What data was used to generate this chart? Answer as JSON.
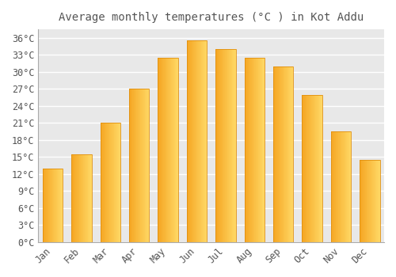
{
  "title": "Average monthly temperatures (°C ) in Kot Addu",
  "months": [
    "Jan",
    "Feb",
    "Mar",
    "Apr",
    "May",
    "Jun",
    "Jul",
    "Aug",
    "Sep",
    "Oct",
    "Nov",
    "Dec"
  ],
  "temperatures": [
    13,
    15.5,
    21,
    27,
    32.5,
    35.5,
    34,
    32.5,
    31,
    26,
    19.5,
    14.5
  ],
  "bar_color_left": "#F5A623",
  "bar_color_right": "#FFD966",
  "bar_edge_color": "#E09010",
  "background_color": "#FFFFFF",
  "plot_bg_color": "#E8E8E8",
  "grid_color": "#FFFFFF",
  "text_color": "#555555",
  "ytick_values": [
    0,
    3,
    6,
    9,
    12,
    15,
    18,
    21,
    24,
    27,
    30,
    33,
    36
  ],
  "ylim": [
    0,
    37.5
  ],
  "title_fontsize": 10,
  "tick_fontsize": 8.5
}
